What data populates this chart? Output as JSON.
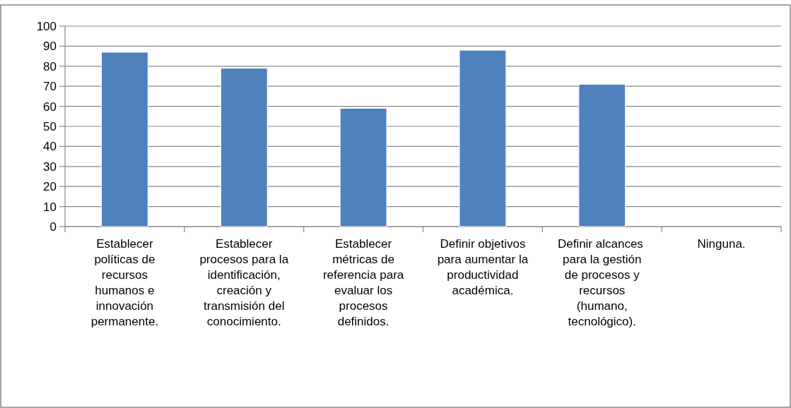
{
  "chart_data": {
    "type": "bar",
    "categories": [
      "Establecer políticas de recursos humanos e innovación permanente.",
      "Establecer procesos para la identificación, creación y transmisión del conocimiento.",
      "Establecer métricas de referencia para evaluar los procesos definidos.",
      "Definir objetivos para aumentar la productividad académica.",
      "Definir alcances  para la gestión de procesos y recursos (humano, tecnológico).",
      "Ninguna."
    ],
    "values": [
      87,
      79,
      59,
      88,
      71,
      0
    ],
    "color": "#4f81bd",
    "ylim": [
      0,
      100
    ],
    "yticks": [
      0,
      10,
      20,
      30,
      40,
      50,
      60,
      70,
      80,
      90,
      100
    ],
    "grid": "y"
  }
}
